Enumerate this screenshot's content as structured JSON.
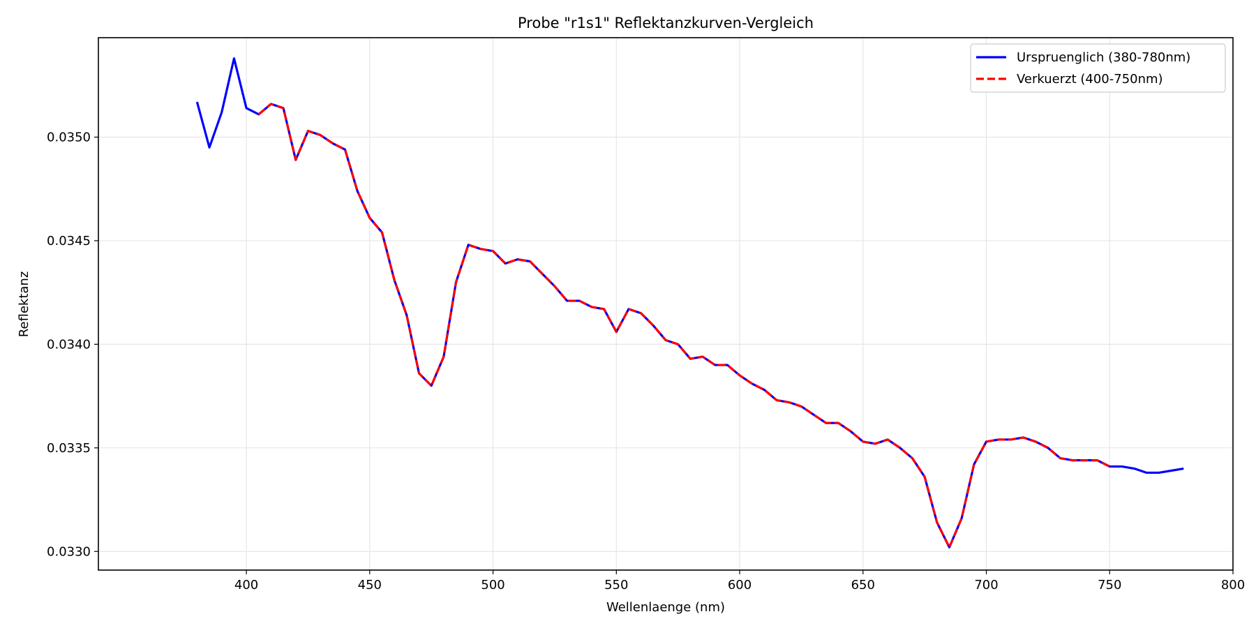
{
  "chart_data": {
    "type": "line",
    "title": "Probe \"r1s1\" Reflektanzkurven-Vergleich",
    "xlabel": "Wellenlaenge (nm)",
    "ylabel": "Reflektanz",
    "xlim": [
      340,
      800
    ],
    "ylim": [
      0.03291,
      0.03548
    ],
    "xticks": [
      400,
      450,
      500,
      550,
      600,
      650,
      700,
      750,
      800
    ],
    "xtick_labels": [
      "400",
      "450",
      "500",
      "550",
      "600",
      "650",
      "700",
      "750",
      "800"
    ],
    "yticks": [
      0.033,
      0.0335,
      0.034,
      0.0345,
      0.035
    ],
    "ytick_labels": [
      "0.0330",
      "0.0335",
      "0.0340",
      "0.0345",
      "0.0350"
    ],
    "grid": true,
    "legend_position": "top-right",
    "series": [
      {
        "name": "Urspruenglich (380-780nm)",
        "color": "#0000ff",
        "style": "solid",
        "x": [
          380,
          385,
          390,
          395,
          400,
          405,
          410,
          415,
          420,
          425,
          430,
          435,
          440,
          445,
          450,
          455,
          460,
          465,
          470,
          475,
          480,
          485,
          490,
          495,
          500,
          505,
          510,
          515,
          520,
          525,
          530,
          535,
          540,
          545,
          550,
          555,
          560,
          565,
          570,
          575,
          580,
          585,
          590,
          595,
          600,
          605,
          610,
          615,
          620,
          625,
          630,
          635,
          640,
          645,
          650,
          655,
          660,
          665,
          670,
          675,
          680,
          685,
          690,
          695,
          700,
          705,
          710,
          715,
          720,
          725,
          730,
          735,
          740,
          745,
          750,
          755,
          760,
          765,
          770,
          775,
          780
        ],
        "y": [
          0.03517,
          0.03495,
          0.03512,
          0.03538,
          0.03514,
          0.03511,
          0.03516,
          0.03514,
          0.03489,
          0.03503,
          0.03501,
          0.03497,
          0.03494,
          0.03474,
          0.03461,
          0.03454,
          0.03431,
          0.03414,
          0.03386,
          0.0338,
          0.03394,
          0.0343,
          0.03448,
          0.03446,
          0.03445,
          0.03439,
          0.03441,
          0.0344,
          0.03434,
          0.03428,
          0.03421,
          0.03421,
          0.03418,
          0.03417,
          0.03406,
          0.03417,
          0.03415,
          0.03409,
          0.03402,
          0.034,
          0.03393,
          0.03394,
          0.0339,
          0.0339,
          0.03385,
          0.03381,
          0.03378,
          0.03373,
          0.03372,
          0.0337,
          0.03366,
          0.03362,
          0.03362,
          0.03358,
          0.03353,
          0.03352,
          0.03354,
          0.0335,
          0.03345,
          0.03336,
          0.03314,
          0.03302,
          0.03316,
          0.03342,
          0.03353,
          0.03354,
          0.03354,
          0.03355,
          0.03353,
          0.0335,
          0.03345,
          0.03344,
          0.03344,
          0.03344,
          0.03341,
          0.03341,
          0.0334,
          0.03338,
          0.03338,
          0.03339,
          0.0334
        ]
      },
      {
        "name": "Verkuerzt (400-750nm)",
        "color": "#ff0000",
        "style": "dashed",
        "x": [
          405,
          410,
          415,
          420,
          425,
          430,
          435,
          440,
          445,
          450,
          455,
          460,
          465,
          470,
          475,
          480,
          485,
          490,
          495,
          500,
          505,
          510,
          515,
          520,
          525,
          530,
          535,
          540,
          545,
          550,
          555,
          560,
          565,
          570,
          575,
          580,
          585,
          590,
          595,
          600,
          605,
          610,
          615,
          620,
          625,
          630,
          635,
          640,
          645,
          650,
          655,
          660,
          665,
          670,
          675,
          680,
          685,
          690,
          695,
          700,
          705,
          710,
          715,
          720,
          725,
          730,
          735,
          740,
          745,
          750
        ],
        "y": [
          0.03511,
          0.03516,
          0.03514,
          0.03489,
          0.03503,
          0.03501,
          0.03497,
          0.03494,
          0.03474,
          0.03461,
          0.03454,
          0.03431,
          0.03414,
          0.03386,
          0.0338,
          0.03394,
          0.0343,
          0.03448,
          0.03446,
          0.03445,
          0.03439,
          0.03441,
          0.0344,
          0.03434,
          0.03428,
          0.03421,
          0.03421,
          0.03418,
          0.03417,
          0.03406,
          0.03417,
          0.03415,
          0.03409,
          0.03402,
          0.034,
          0.03393,
          0.03394,
          0.0339,
          0.0339,
          0.03385,
          0.03381,
          0.03378,
          0.03373,
          0.03372,
          0.0337,
          0.03366,
          0.03362,
          0.03362,
          0.03358,
          0.03353,
          0.03352,
          0.03354,
          0.0335,
          0.03345,
          0.03336,
          0.03314,
          0.03302,
          0.03316,
          0.03342,
          0.03353,
          0.03354,
          0.03354,
          0.03355,
          0.03353,
          0.0335,
          0.03345,
          0.03344,
          0.03344,
          0.03344,
          0.03341
        ]
      }
    ]
  }
}
